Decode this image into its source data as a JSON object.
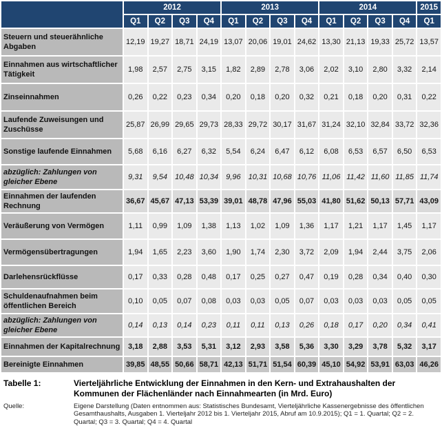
{
  "colors": {
    "header_bg": "#204571",
    "header_text": "#FFFFFF",
    "label_bg": "#B9B9B9",
    "cell_bg": "#EAEAEA",
    "subtotal_bg": "#DADADA",
    "total_bg": "#C6C6C6"
  },
  "table": {
    "years": [
      {
        "label": "2012",
        "quarters": [
          "Q1",
          "Q2",
          "Q3",
          "Q4"
        ]
      },
      {
        "label": "2013",
        "quarters": [
          "Q1",
          "Q2",
          "Q3",
          "Q4"
        ]
      },
      {
        "label": "2014",
        "quarters": [
          "Q1",
          "Q2",
          "Q3",
          "Q4"
        ]
      },
      {
        "label": "2015",
        "quarters": [
          "Q1"
        ]
      }
    ],
    "rows": [
      {
        "label": "Steuern und steuerähnliche Abgaben",
        "style": "normal",
        "values": [
          "12,19",
          "19,27",
          "18,71",
          "24,19",
          "13,07",
          "20,06",
          "19,01",
          "24,62",
          "13,30",
          "21,13",
          "19,33",
          "25,72",
          "13,57"
        ]
      },
      {
        "label": "Einnahmen aus wirtschaftlicher Tätigkeit",
        "style": "normal",
        "values": [
          "1,98",
          "2,57",
          "2,75",
          "3,15",
          "1,82",
          "2,89",
          "2,78",
          "3,06",
          "2,02",
          "3,10",
          "2,80",
          "3,32",
          "2,14"
        ]
      },
      {
        "label": "Zinseinnahmen",
        "style": "normal",
        "values": [
          "0,26",
          "0,22",
          "0,23",
          "0,34",
          "0,20",
          "0,18",
          "0,20",
          "0,32",
          "0,21",
          "0,18",
          "0,20",
          "0,31",
          "0,22"
        ]
      },
      {
        "label": "Laufende Zuweisungen und Zuschüsse",
        "style": "normal",
        "values": [
          "25,87",
          "26,99",
          "29,65",
          "29,73",
          "28,33",
          "29,72",
          "30,17",
          "31,67",
          "31,24",
          "32,10",
          "32,84",
          "33,72",
          "32,36"
        ]
      },
      {
        "label": "Sonstige laufende Einnahmen",
        "style": "normal",
        "values": [
          "5,68",
          "6,16",
          "6,27",
          "6,32",
          "5,54",
          "6,24",
          "6,47",
          "6,12",
          "6,08",
          "6,53",
          "6,57",
          "6,50",
          "6,53"
        ]
      },
      {
        "label": "abzüglich: Zahlungen von gleicher Ebene",
        "style": "deduct",
        "values": [
          "9,31",
          "9,54",
          "10,48",
          "10,34",
          "9,96",
          "10,31",
          "10,68",
          "10,76",
          "11,06",
          "11,42",
          "11,60",
          "11,85",
          "11,74"
        ]
      },
      {
        "label": "Einnahmen der laufenden Rechnung",
        "style": "subtotal",
        "values": [
          "36,67",
          "45,67",
          "47,13",
          "53,39",
          "39,01",
          "48,78",
          "47,96",
          "55,03",
          "41,80",
          "51,62",
          "50,13",
          "57,71",
          "43,09"
        ]
      },
      {
        "label": "Veräußerung von Vermögen",
        "style": "normal",
        "values": [
          "1,11",
          "0,99",
          "1,09",
          "1,38",
          "1,13",
          "1,02",
          "1,09",
          "1,36",
          "1,17",
          "1,21",
          "1,17",
          "1,45",
          "1,17"
        ]
      },
      {
        "label": "Vermögensübertragungen",
        "style": "normal",
        "values": [
          "1,94",
          "1,65",
          "2,23",
          "3,60",
          "1,90",
          "1,74",
          "2,30",
          "3,72",
          "2,09",
          "1,94",
          "2,44",
          "3,75",
          "2,06"
        ]
      },
      {
        "label": "Darlehensrückflüsse",
        "style": "normal",
        "values": [
          "0,17",
          "0,33",
          "0,28",
          "0,48",
          "0,17",
          "0,25",
          "0,27",
          "0,47",
          "0,19",
          "0,28",
          "0,34",
          "0,40",
          "0,30"
        ]
      },
      {
        "label": "Schuldenaufnahmen beim öffentlichen Bereich",
        "style": "normal",
        "values": [
          "0,10",
          "0,05",
          "0,07",
          "0,08",
          "0,03",
          "0,03",
          "0,05",
          "0,07",
          "0,03",
          "0,03",
          "0,03",
          "0,05",
          "0,05"
        ]
      },
      {
        "label": "abzüglich: Zahlungen von gleicher Ebene",
        "style": "deduct",
        "values": [
          "0,14",
          "0,13",
          "0,14",
          "0,23",
          "0,11",
          "0,11",
          "0,13",
          "0,26",
          "0,18",
          "0,17",
          "0,20",
          "0,34",
          "0,41"
        ]
      },
      {
        "label": "Einnahmen der Kapitalrechnung",
        "style": "subtotal",
        "values": [
          "3,18",
          "2,88",
          "3,53",
          "5,31",
          "3,12",
          "2,93",
          "3,58",
          "5,36",
          "3,30",
          "3,29",
          "3,78",
          "5,32",
          "3,17"
        ]
      },
      {
        "label": "Bereinigte Einnahmen",
        "style": "total",
        "values": [
          "39,85",
          "48,55",
          "50,66",
          "58,71",
          "42,13",
          "51,71",
          "51,54",
          "60,39",
          "45,10",
          "54,92",
          "53,91",
          "63,03",
          "46,26"
        ]
      }
    ]
  },
  "caption": {
    "label": "Tabelle 1:",
    "text": "Vierteljährliche Entwicklung der Einnahmen in den Kern- und Extrahaushalten der Kommunen der Flächenländer nach Einnahmearten (in Mrd. Euro)"
  },
  "source": {
    "label": "Quelle:",
    "text": "Eigene Darstellung (Daten entnommen aus: Statistisches Bundesamt, Vierteljährliche Kassenergebnisse des öffentlichen Gesamthaushalts, Ausgaben 1. Vierteljahr 2012 bis 1. Vierteljahr 2015, Abruf am 10.9.2015); Q1 = 1. Quartal; Q2 = 2. Quartal; Q3 = 3. Quartal; Q4 = 4. Quartal"
  }
}
